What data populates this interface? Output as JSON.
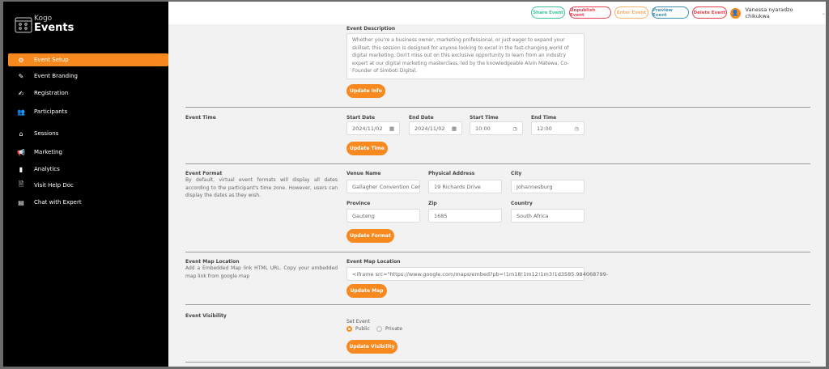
{
  "brand": {
    "line1": "Kogo",
    "line2": "Events"
  },
  "sidebar": {
    "items": [
      {
        "label": "Event Setup",
        "icon": "gear-icon",
        "active": true
      },
      {
        "label": "Event Branding",
        "icon": "pencil-icon"
      },
      {
        "label": "Registration",
        "icon": "edit-icon"
      },
      {
        "label": "Participants",
        "icon": "users-icon"
      },
      {
        "label": "Sessions",
        "icon": "inbox-icon"
      },
      {
        "label": "Marketing",
        "icon": "megaphone-icon"
      },
      {
        "label": "Analytics",
        "icon": "bar-chart-icon"
      },
      {
        "label": "Visit Help Doc",
        "icon": "document-icon"
      },
      {
        "label": "Chat with Expert",
        "icon": "chat-icon"
      }
    ]
  },
  "header": {
    "buttons": [
      {
        "label": "Share Event",
        "color": "#3cc29a"
      },
      {
        "label": "Unpublish Event",
        "color": "#e8404f"
      },
      {
        "label": "Enter Event",
        "color": "#f5b06a"
      },
      {
        "label": "Preview Event",
        "color": "#3a8fb0"
      },
      {
        "label": "Delete Event",
        "color": "#e8404f"
      }
    ],
    "user": "Vanessa nyaradzo chikukwa"
  },
  "description": {
    "label": "Event Description",
    "value": "Whether you're a business owner, marketing professional, or just eager to expand your skillset, this session is designed for anyone looking to excel in the fast-changing world of digital marketing. Don't miss out on this exclusive opportunity to learn from an industry expert at our digital marketing masterclass, led by the knowledgeable Alvin Matewa, Co-Founder of Simboti Digital.",
    "button": "Update Info"
  },
  "time": {
    "title": "Event Time",
    "start_date_label": "Start Date",
    "start_date": "2024/11/02",
    "end_date_label": "End Date",
    "end_date": "2024/11/02",
    "start_time_label": "Start Time",
    "start_time": "10:00",
    "end_time_label": "End Time",
    "end_time": "12:00",
    "button": "Update Time"
  },
  "format": {
    "title": "Event Format",
    "desc": "By default, virtual event formats will display all dates according to the participant's time zone. However, users can display the dates as they wish.",
    "venue_label": "Venue Name",
    "venue": "Gallagher Convention Cer",
    "address_label": "Physical Address",
    "address": "19 Richards Drive",
    "city_label": "City",
    "city": "Johannesburg",
    "province_label": "Province",
    "province": "Gauteng",
    "zip_label": "Zip",
    "zip": "1685",
    "country_label": "Country",
    "country": "South Africa",
    "button": "Update Format"
  },
  "map": {
    "title": "Event Map Location",
    "desc": "Add a Embedded Map link HTML URL. Copy your embedded map link from google map",
    "field_label": "Event Map Location",
    "value": "<iframe src=\"https://www.google.com/maps/embed?pb=!1m18!1m12!1m3!1d3585.984068799-",
    "button": "Update Map"
  },
  "visibility": {
    "title": "Event Visibility",
    "set_label": "Set Event",
    "public": "Public",
    "private": "Private",
    "selected": "Public",
    "button": "Update Visibility"
  },
  "accent": "#f7891f"
}
